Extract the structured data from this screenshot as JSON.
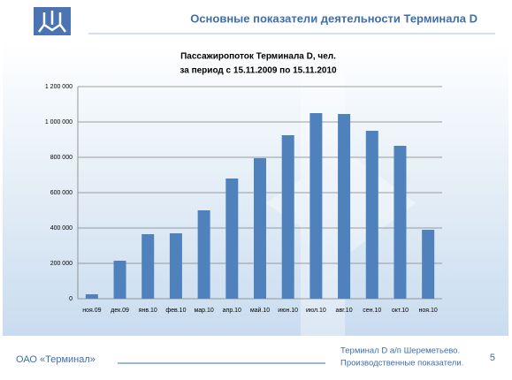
{
  "header": {
    "title": "Основные показатели деятельности Терминала D"
  },
  "chart_data": {
    "type": "bar",
    "title": [
      "Пассажиропоток Терминала D, чел.",
      "за период с 15.11.2009 по 15.11.2010"
    ],
    "categories": [
      "ноя.09",
      "дек.09",
      "янв.10",
      "фев.10",
      "мар.10",
      "апр.10",
      "май.10",
      "июн.10",
      "июл.10",
      "авг.10",
      "сен.10",
      "окт.10",
      "ноя.10"
    ],
    "values": [
      25000,
      215000,
      365000,
      370000,
      500000,
      680000,
      795000,
      925000,
      1050000,
      1045000,
      950000,
      865000,
      390000
    ],
    "color": "#4f81bd",
    "ylim": [
      0,
      1200000
    ],
    "yticks": [
      0,
      {
        "value": 200000,
        "label": "200 000"
      },
      {
        "value": 400000,
        "label": "400 000"
      },
      {
        "value": 600000,
        "label": "600 000"
      },
      {
        "value": 800000,
        "label": "800 000"
      },
      {
        "value": 1000000,
        "label": "1 000 000"
      },
      {
        "value": 1200000,
        "label": "1 200 000"
      }
    ],
    "grid": true
  },
  "footer": {
    "company": "ОАО «Терминал»",
    "note": [
      "Терминал D а/п Шереметьево.",
      "Производственные показатели."
    ],
    "page": "5"
  }
}
